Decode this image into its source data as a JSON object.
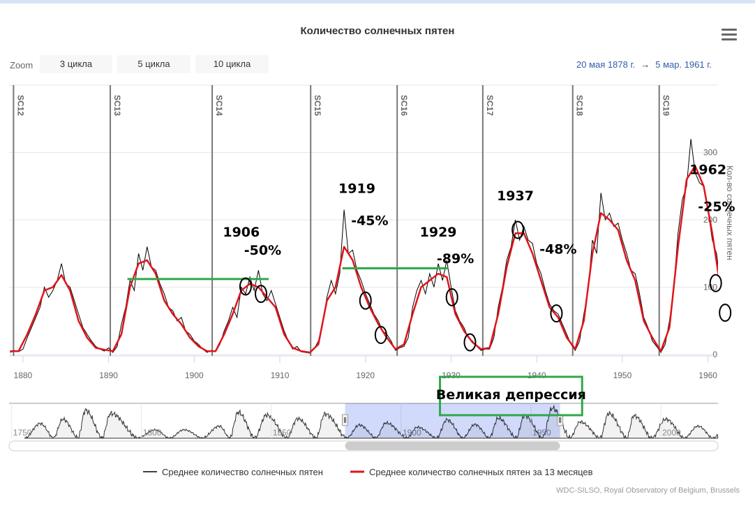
{
  "title": "Количество солнечных пятен",
  "toolbar": {
    "zoom_label": "Zoom",
    "buttons": [
      "3 цикла",
      "5 цикла",
      "10 цикла"
    ],
    "range_from": "20 мая 1878 г.",
    "range_arrow": "→",
    "range_to": "5 мар. 1961 г.",
    "menu_icon": "hamburger-icon"
  },
  "credits": "WDC-SILSO, Royal Observatory of Belgium, Brussels",
  "colors": {
    "raw": "#000000",
    "smoothed": "#e0141a",
    "annotation_green": "#2ea84a",
    "nav_mask": "#ccd6fb"
  },
  "chart_data": {
    "type": "line",
    "title": "Количество солнечных пятен",
    "ylabel": "Кол-во солнечных пятен",
    "xlim": [
      1878.38,
      1961.17
    ],
    "ylim": [
      0,
      400
    ],
    "yticks": [
      0,
      100,
      200,
      300
    ],
    "xticks": [
      1880,
      1890,
      1900,
      1910,
      1920,
      1930,
      1940,
      1950,
      1960
    ],
    "cycles": [
      {
        "label": "SC12",
        "x": 1878.9
      },
      {
        "label": "SC13",
        "x": 1890.2
      },
      {
        "label": "SC14",
        "x": 1902.1
      },
      {
        "label": "SC15",
        "x": 1913.6
      },
      {
        "label": "SC16",
        "x": 1923.7
      },
      {
        "label": "SC17",
        "x": 1933.7
      },
      {
        "label": "SC18",
        "x": 1944.2
      },
      {
        "label": "SC19",
        "x": 1954.3
      }
    ],
    "legend": [
      "Среднее количество солнечных пятен",
      "Среднее количество солнечных пятен за 13 месяцев"
    ],
    "series": [
      {
        "name": "Среднее количество солнечных пятен",
        "x_start": 1878.5,
        "x_step": 0.5,
        "values": [
          3,
          6,
          4,
          8,
          25,
          40,
          55,
          70,
          100,
          85,
          95,
          110,
          135,
          105,
          100,
          80,
          60,
          40,
          30,
          20,
          12,
          8,
          5,
          10,
          3,
          12,
          45,
          70,
          110,
          95,
          150,
          125,
          160,
          130,
          125,
          105,
          90,
          70,
          65,
          50,
          55,
          35,
          30,
          20,
          15,
          8,
          3,
          6,
          4,
          15,
          35,
          50,
          70,
          55,
          100,
          90,
          115,
          95,
          125,
          90,
          80,
          95,
          75,
          55,
          35,
          20,
          8,
          12,
          4,
          3,
          2,
          8,
          20,
          45,
          85,
          110,
          90,
          120,
          215,
          150,
          155,
          125,
          110,
          90,
          75,
          60,
          50,
          35,
          30,
          20,
          6,
          10,
          12,
          25,
          70,
          95,
          110,
          90,
          120,
          100,
          135,
          110,
          140,
          100,
          65,
          50,
          40,
          25,
          20,
          12,
          6,
          8,
          8,
          25,
          70,
          100,
          140,
          160,
          200,
          170,
          190,
          170,
          165,
          135,
          120,
          95,
          75,
          65,
          60,
          45,
          30,
          15,
          6,
          20,
          60,
          95,
          170,
          150,
          240,
          200,
          210,
          190,
          195,
          170,
          150,
          125,
          120,
          90,
          55,
          40,
          20,
          12,
          3,
          15,
          50,
          100,
          180,
          230,
          250,
          320,
          270,
          255,
          250,
          215,
          170,
          150,
          100,
          70
        ]
      },
      {
        "name": "Среднее количество солнечных пятен за 13 месяцев",
        "x_start": 1878.5,
        "x_step": 1,
        "values": [
          5,
          5,
          30,
          60,
          95,
          100,
          118,
          95,
          50,
          25,
          10,
          7,
          5,
          30,
          100,
          135,
          140,
          120,
          80,
          60,
          45,
          25,
          12,
          5,
          5,
          30,
          60,
          95,
          105,
          100,
          85,
          70,
          30,
          10,
          5,
          3,
          15,
          80,
          100,
          160,
          140,
          100,
          70,
          45,
          25,
          8,
          15,
          60,
          100,
          110,
          120,
          115,
          60,
          35,
          18,
          8,
          10,
          60,
          130,
          180,
          180,
          150,
          110,
          70,
          55,
          25,
          8,
          50,
          150,
          210,
          200,
          185,
          140,
          110,
          50,
          25,
          5,
          40,
          160,
          260,
          280,
          250,
          180,
          95
        ]
      }
    ],
    "navigator": {
      "xlim": [
        1749,
        2022
      ],
      "xticks": [
        1750,
        1800,
        1850,
        1900,
        1950,
        2000
      ],
      "selection": [
        1878.38,
        1961.17
      ],
      "cycles": [
        [
          1755,
          1761,
          140
        ],
        [
          1766,
          1769.7,
          180
        ],
        [
          1775.5,
          1778.4,
          265
        ],
        [
          1784.7,
          1788.1,
          235
        ],
        [
          1798.3,
          1805.2,
          80
        ],
        [
          1810.6,
          1816.4,
          80
        ],
        [
          1823.3,
          1829.9,
          115
        ],
        [
          1833.9,
          1837.2,
          245
        ],
        [
          1843.5,
          1848.1,
          220
        ],
        [
          1855.9,
          1860.1,
          185
        ],
        [
          1867.2,
          1870.6,
          230
        ],
        [
          1878.9,
          1883.9,
          125
        ],
        [
          1890.2,
          1894.1,
          145
        ],
        [
          1902.1,
          1906.2,
          105
        ],
        [
          1913.6,
          1917.6,
          175
        ],
        [
          1923.6,
          1928.4,
          130
        ],
        [
          1933.8,
          1937.4,
          190
        ],
        [
          1944.2,
          1947.5,
          215
        ],
        [
          1954.3,
          1958.2,
          285
        ],
        [
          1964.9,
          1968.9,
          155
        ],
        [
          1976.5,
          1979.9,
          235
        ],
        [
          1986.8,
          1989.6,
          215
        ],
        [
          1996.4,
          2001.9,
          180
        ],
        [
          2008.9,
          2014.3,
          115
        ],
        [
          2019.9,
          2025,
          100
        ]
      ]
    },
    "annotations": {
      "labels": [
        {
          "text": "1906",
          "x": 1905.5,
          "y": 175
        },
        {
          "text": "-50%",
          "x": 1908,
          "y": 148
        },
        {
          "text": "1919",
          "x": 1919,
          "y": 240
        },
        {
          "text": "-45%",
          "x": 1920.5,
          "y": 192
        },
        {
          "text": "1929",
          "x": 1928.5,
          "y": 175
        },
        {
          "text": "-89%",
          "x": 1930.5,
          "y": 136
        },
        {
          "text": "1937",
          "x": 1937.5,
          "y": 229
        },
        {
          "text": "-48%",
          "x": 1942.5,
          "y": 150
        },
        {
          "text": "1962",
          "x": 1960,
          "y": 268
        },
        {
          "text": "-25%",
          "x": 1961,
          "y": 213
        }
      ],
      "circles": [
        {
          "x": 1906,
          "y": 101
        },
        {
          "x": 1907.8,
          "y": 90
        },
        {
          "x": 1920,
          "y": 80
        },
        {
          "x": 1921.8,
          "y": 29
        },
        {
          "x": 1930.1,
          "y": 85
        },
        {
          "x": 1932.2,
          "y": 18
        },
        {
          "x": 1937.8,
          "y": 185
        },
        {
          "x": 1942.3,
          "y": 61
        },
        {
          "x": 1960.9,
          "y": 106
        },
        {
          "x": 1962,
          "y": 62
        }
      ],
      "lines": [
        {
          "x1": 1892.2,
          "x2": 1908.7,
          "y": 112
        },
        {
          "x1": 1917.3,
          "x2": 1929.7,
          "y": 128
        }
      ],
      "box": {
        "text": "Великая депрессия",
        "x1": 1928.7,
        "x2": 1945.3
      }
    }
  }
}
